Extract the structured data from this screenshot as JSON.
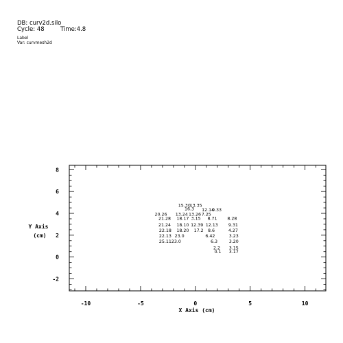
{
  "header": {
    "db_line": "DB: curv2d.silo",
    "cycle_line": "Cycle: 48",
    "time_line": "Time:4.8",
    "plot_type": "Label",
    "var_line": "Var: curvmesh2d"
  },
  "chart_data": {
    "type": "scatter",
    "title": "",
    "xlabel": "X Axis (cm)",
    "ylabel": "Y Axis (cm)",
    "xlim": [
      -11.5,
      11.9
    ],
    "ylim": [
      -3.1,
      8.4
    ],
    "xticks": [
      -10,
      -5,
      0,
      5,
      10
    ],
    "xtick_labels": [
      "-10",
      "-5",
      "0",
      "5",
      "10"
    ],
    "yticks": [
      -2,
      0,
      2,
      4,
      6,
      8
    ],
    "ytick_labels": [
      "-2",
      "0",
      "2",
      "4",
      "6",
      "8"
    ],
    "grid": false,
    "points": [
      {
        "x": -1.0,
        "y": 4.75,
        "label": "15.30"
      },
      {
        "x": 0.05,
        "y": 4.75,
        "label": "13.35"
      },
      {
        "x": -0.55,
        "y": 4.45,
        "label": "16.3"
      },
      {
        "x": 1.15,
        "y": 4.35,
        "label": "12.14"
      },
      {
        "x": 1.95,
        "y": 4.35,
        "label": "0.33"
      },
      {
        "x": -3.15,
        "y": 3.95,
        "label": "20.26"
      },
      {
        "x": -1.25,
        "y": 3.95,
        "label": "13.24"
      },
      {
        "x": -0.05,
        "y": 3.95,
        "label": "13.26"
      },
      {
        "x": 1.0,
        "y": 3.95,
        "label": "7.25"
      },
      {
        "x": -2.8,
        "y": 3.55,
        "label": "21.28"
      },
      {
        "x": -1.15,
        "y": 3.55,
        "label": "18.17"
      },
      {
        "x": 0.05,
        "y": 3.55,
        "label": "3.15"
      },
      {
        "x": 1.55,
        "y": 3.55,
        "label": "8.71"
      },
      {
        "x": 3.35,
        "y": 3.55,
        "label": "8.28"
      },
      {
        "x": -2.8,
        "y": 2.95,
        "label": "21.24"
      },
      {
        "x": -1.15,
        "y": 2.95,
        "label": "18.10"
      },
      {
        "x": 0.15,
        "y": 2.95,
        "label": "12.39"
      },
      {
        "x": 1.5,
        "y": 2.95,
        "label": "12.13"
      },
      {
        "x": 3.45,
        "y": 2.95,
        "label": "9.31"
      },
      {
        "x": -2.75,
        "y": 2.45,
        "label": "22.18"
      },
      {
        "x": -1.15,
        "y": 2.45,
        "label": "18.20"
      },
      {
        "x": 0.3,
        "y": 2.45,
        "label": "17.2"
      },
      {
        "x": 1.45,
        "y": 2.45,
        "label": "8.6"
      },
      {
        "x": 3.45,
        "y": 2.45,
        "label": "4.27"
      },
      {
        "x": -2.75,
        "y": 1.95,
        "label": "22.13"
      },
      {
        "x": -1.45,
        "y": 1.95,
        "label": "23.0"
      },
      {
        "x": 1.35,
        "y": 1.95,
        "label": "6.42"
      },
      {
        "x": 3.5,
        "y": 1.95,
        "label": "3.23"
      },
      {
        "x": -2.75,
        "y": 1.45,
        "label": "25.11"
      },
      {
        "x": -1.75,
        "y": 1.45,
        "label": "23.0"
      },
      {
        "x": 1.7,
        "y": 1.45,
        "label": "6.3"
      },
      {
        "x": 3.5,
        "y": 1.45,
        "label": "3.20"
      },
      {
        "x": 1.95,
        "y": 0.85,
        "label": "2.2"
      },
      {
        "x": 3.5,
        "y": 0.85,
        "label": "3.15"
      },
      {
        "x": 2.05,
        "y": 0.5,
        "label": "0.1"
      },
      {
        "x": 3.5,
        "y": 0.5,
        "label": "3.17"
      }
    ]
  }
}
